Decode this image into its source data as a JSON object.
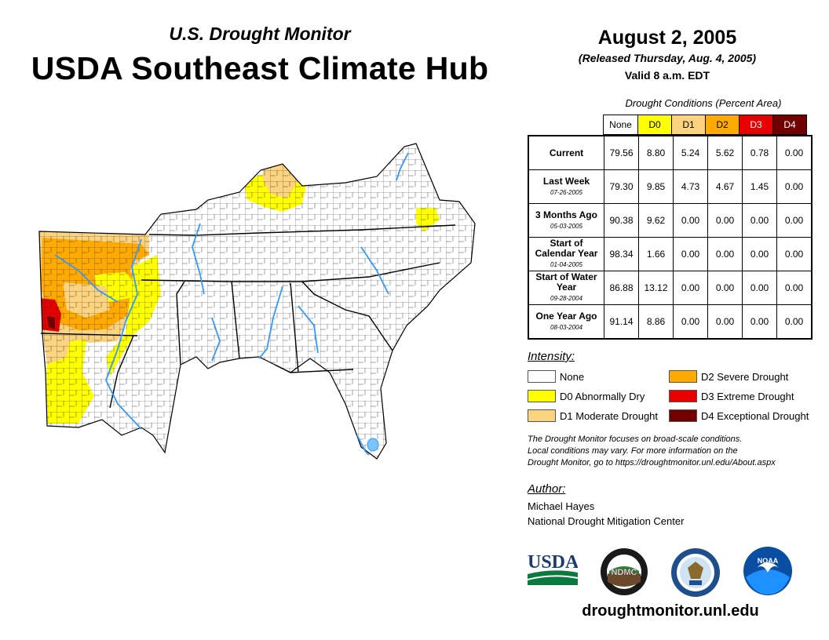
{
  "header": {
    "subtitle": "U.S. Drought Monitor",
    "title": "USDA Southeast Climate Hub"
  },
  "release": {
    "date": "August 2, 2005",
    "released": "(Released Thursday, Aug. 4, 2005)",
    "valid": "Valid 8 a.m. EDT"
  },
  "conditions_table": {
    "caption": "Drought Conditions (Percent Area)",
    "columns": [
      "None",
      "D0",
      "D1",
      "D2",
      "D3",
      "D4"
    ],
    "rows": [
      {
        "label": "Current",
        "date": "",
        "values": [
          "79.56",
          "8.80",
          "5.24",
          "5.62",
          "0.78",
          "0.00"
        ]
      },
      {
        "label": "Last Week",
        "date": "07-26-2005",
        "values": [
          "79.30",
          "9.85",
          "4.73",
          "4.67",
          "1.45",
          "0.00"
        ]
      },
      {
        "label": "3 Months Ago",
        "date": "05-03-2005",
        "values": [
          "90.38",
          "9.62",
          "0.00",
          "0.00",
          "0.00",
          "0.00"
        ]
      },
      {
        "label": "Start of Calendar Year",
        "date": "01-04-2005",
        "values": [
          "98.34",
          "1.66",
          "0.00",
          "0.00",
          "0.00",
          "0.00"
        ]
      },
      {
        "label": "Start of Water Year",
        "date": "09-28-2004",
        "values": [
          "86.88",
          "13.12",
          "0.00",
          "0.00",
          "0.00",
          "0.00"
        ]
      },
      {
        "label": "One Year Ago",
        "date": "08-03-2004",
        "values": [
          "91.14",
          "8.86",
          "0.00",
          "0.00",
          "0.00",
          "0.00"
        ]
      }
    ]
  },
  "legend": {
    "title": "Intensity:",
    "items": [
      {
        "label": "None",
        "color": "#ffffff"
      },
      {
        "label": "D0 Abnormally Dry",
        "color": "#ffff00"
      },
      {
        "label": "D1 Moderate Drought",
        "color": "#fcd37f"
      },
      {
        "label": "D2 Severe Drought",
        "color": "#ffaa00"
      },
      {
        "label": "D3 Extreme Drought",
        "color": "#e60000"
      },
      {
        "label": "D4 Exceptional Drought",
        "color": "#730000"
      }
    ]
  },
  "colors": {
    "none": "#ffffff",
    "d0": "#ffff00",
    "d1": "#fcd37f",
    "d2": "#ffaa00",
    "d3": "#e60000",
    "d4": "#730000",
    "water": "#3399ff",
    "county_line": "#000000"
  },
  "disclaimer": [
    "The Drought Monitor focuses on broad-scale conditions.",
    "Local conditions may vary. For more information on the",
    "Drought Monitor, go to https://droughtmonitor.unl.edu/About.aspx"
  ],
  "author": {
    "title": "Author:",
    "name": "Michael Hayes",
    "organization": "National Drought Mitigation Center"
  },
  "logos": {
    "usda": "USDA",
    "ndmc": "NDMC",
    "noaa": "NOAA"
  },
  "footer": {
    "url": "droughtmonitor.unl.edu"
  }
}
